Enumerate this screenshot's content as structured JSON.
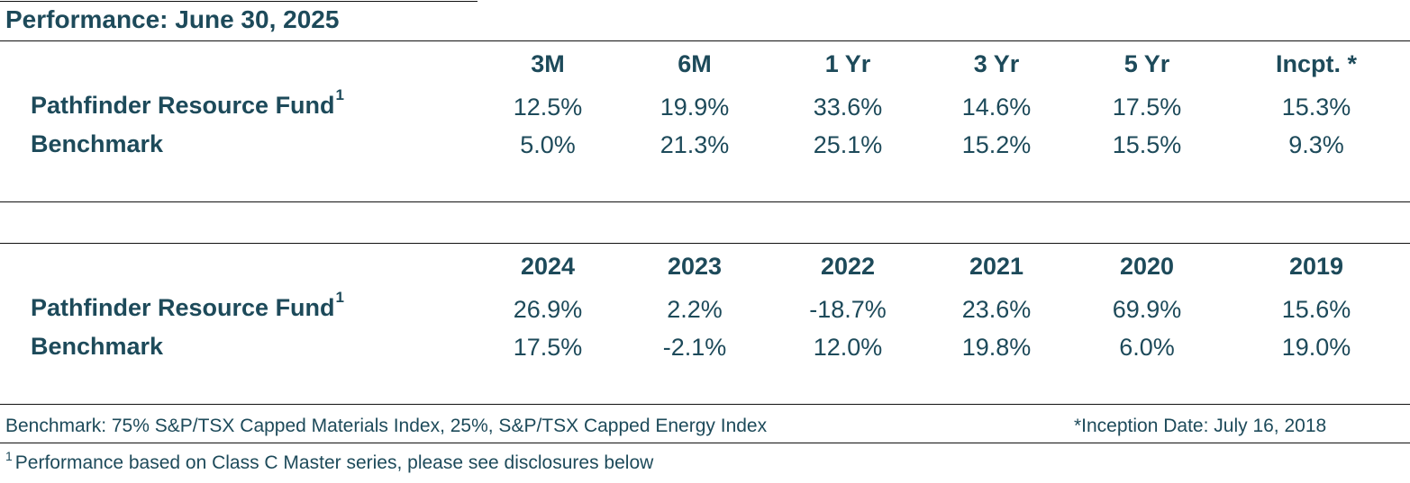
{
  "title": "Performance: June 30, 2025",
  "fund_superscript": "1",
  "trailing": {
    "headers": [
      "3M",
      "6M",
      "1 Yr",
      "3 Yr",
      "5 Yr",
      "Incpt. *"
    ],
    "rows": [
      {
        "label": "Pathfinder Resource Fund",
        "values": [
          "12.5%",
          "19.9%",
          "33.6%",
          "14.6%",
          "17.5%",
          "15.3%"
        ]
      },
      {
        "label": "Benchmark",
        "values": [
          "5.0%",
          "21.3%",
          "25.1%",
          "15.2%",
          "15.5%",
          "9.3%"
        ]
      }
    ]
  },
  "calendar": {
    "headers": [
      "2024",
      "2023",
      "2022",
      "2021",
      "2020",
      "2019"
    ],
    "rows": [
      {
        "label": "Pathfinder Resource Fund",
        "values": [
          "26.9%",
          "2.2%",
          "-18.7%",
          "23.6%",
          "69.9%",
          "15.6%"
        ]
      },
      {
        "label": "Benchmark",
        "values": [
          "17.5%",
          "-2.1%",
          "12.0%",
          "19.8%",
          "6.0%",
          "19.0%"
        ]
      }
    ]
  },
  "footer": {
    "benchmark_note": "Benchmark: 75% S&P/TSX Capped Materials Index, 25%, S&P/TSX Capped Energy Index",
    "inception_note": "*Inception Date: July 16, 2018",
    "disclosure_superscript": "1",
    "disclosure_note": "Performance based on Class C Master series, please see disclosures below"
  }
}
